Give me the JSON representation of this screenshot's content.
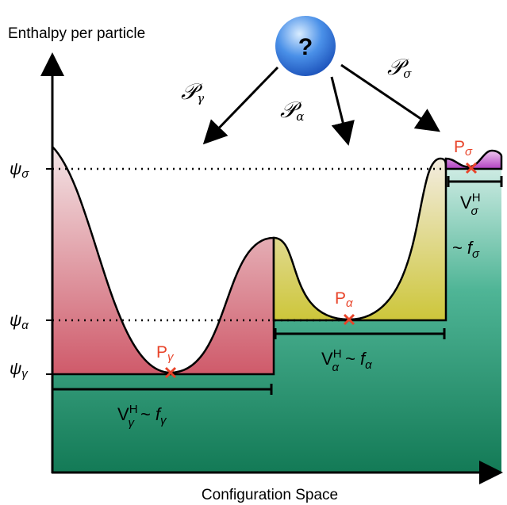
{
  "axes": {
    "y_label": "Enthalpy per particle",
    "x_label": "Configuration Space"
  },
  "origin": "?",
  "pathways": [
    {
      "symbol": "𝒫",
      "sub": "γ"
    },
    {
      "symbol": "𝒫",
      "sub": "α"
    },
    {
      "symbol": "𝒫",
      "sub": "σ"
    }
  ],
  "levels": [
    {
      "symbol": "ψ",
      "sub": "σ"
    },
    {
      "symbol": "ψ",
      "sub": "α"
    },
    {
      "symbol": "ψ",
      "sub": "γ"
    }
  ],
  "minima": [
    {
      "symbol": "P",
      "sub": "γ"
    },
    {
      "symbol": "P",
      "sub": "α"
    },
    {
      "symbol": "P",
      "sub": "σ"
    }
  ],
  "volumes": [
    {
      "symbol": "V",
      "sup": "H",
      "sub": "γ",
      "relation": "~",
      "f": "f",
      "f_sub": "γ"
    },
    {
      "symbol": "V",
      "sup": "H",
      "sub": "α",
      "relation": "~",
      "f": "f",
      "f_sub": "α"
    },
    {
      "symbol": "V",
      "sup": "H",
      "sub": "σ",
      "relation": "~",
      "f": "f",
      "f_sub": "σ"
    }
  ]
}
